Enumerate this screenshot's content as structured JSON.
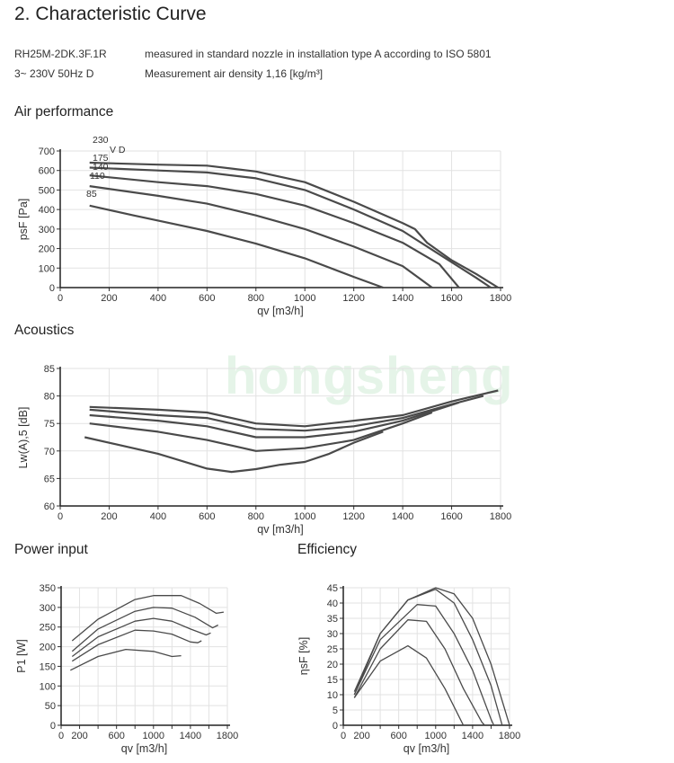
{
  "header": {
    "title": "2.  Characteristic Curve",
    "model": "RH25M-2DK.3F.1R",
    "supply": "3~ 230V 50Hz D",
    "measurement_note": "measured in standard nozzle in installation type A according to ISO 5801",
    "air_density": "Measurement air density 1,16 [kg/m³]"
  },
  "watermark": "hongsheng",
  "sections": {
    "air": "Air performance",
    "acoustics": "Acoustics",
    "power": "Power input",
    "efficiency": "Efficiency"
  },
  "chart_data": [
    {
      "id": "air",
      "type": "line",
      "title": "Air performance",
      "xlabel": "qv [m3/h]",
      "ylabel": "psF [Pa]",
      "xlim": [
        0,
        1800
      ],
      "ylim": [
        0,
        700
      ],
      "xticks": [
        0,
        200,
        400,
        600,
        800,
        1000,
        1200,
        1400,
        1600,
        1800
      ],
      "xticklabels": [
        "0",
        "200",
        "400",
        "600",
        "800",
        "1000",
        "1200",
        "1400",
        "1600",
        "1800"
      ],
      "yticks": [
        0,
        100,
        200,
        300,
        400,
        500,
        600,
        700
      ],
      "grid": true,
      "curve_labels": [
        "230",
        "V D",
        "175",
        "140",
        "110",
        "85"
      ],
      "series": [
        {
          "name": "230",
          "points": [
            [
              120,
              640
            ],
            [
              400,
              630
            ],
            [
              600,
              625
            ],
            [
              800,
              595
            ],
            [
              1000,
              540
            ],
            [
              1200,
              440
            ],
            [
              1400,
              330
            ],
            [
              1450,
              300
            ],
            [
              1500,
              230
            ],
            [
              1600,
              140
            ],
            [
              1700,
              70
            ],
            [
              1790,
              0
            ]
          ]
        },
        {
          "name": "175",
          "points": [
            [
              120,
              615
            ],
            [
              400,
              600
            ],
            [
              600,
              590
            ],
            [
              800,
              560
            ],
            [
              1000,
              500
            ],
            [
              1200,
              400
            ],
            [
              1400,
              290
            ],
            [
              1550,
              170
            ],
            [
              1700,
              50
            ],
            [
              1760,
              0
            ]
          ]
        },
        {
          "name": "140",
          "points": [
            [
              120,
              575
            ],
            [
              400,
              540
            ],
            [
              600,
              520
            ],
            [
              800,
              480
            ],
            [
              1000,
              420
            ],
            [
              1200,
              330
            ],
            [
              1400,
              230
            ],
            [
              1550,
              120
            ],
            [
              1630,
              0
            ]
          ]
        },
        {
          "name": "110",
          "points": [
            [
              120,
              520
            ],
            [
              400,
              470
            ],
            [
              600,
              430
            ],
            [
              800,
              370
            ],
            [
              1000,
              300
            ],
            [
              1200,
              210
            ],
            [
              1400,
              110
            ],
            [
              1520,
              0
            ]
          ]
        },
        {
          "name": "85",
          "points": [
            [
              120,
              420
            ],
            [
              300,
              370
            ],
            [
              600,
              290
            ],
            [
              800,
              225
            ],
            [
              1000,
              150
            ],
            [
              1200,
              55
            ],
            [
              1320,
              0
            ]
          ]
        }
      ]
    },
    {
      "id": "acoustics",
      "type": "line",
      "title": "Acoustics",
      "xlabel": "qv [m3/h]",
      "ylabel": "Lw(A),5 [dB]",
      "xlim": [
        0,
        1800
      ],
      "ylim": [
        60,
        85
      ],
      "xticks": [
        0,
        200,
        400,
        600,
        800,
        1000,
        1200,
        1400,
        1600,
        1800
      ],
      "xticklabels": [
        "0",
        "200",
        "400",
        "600",
        "800",
        "1000",
        "1200",
        "1400",
        "1600",
        "1800"
      ],
      "yticks": [
        60,
        65,
        70,
        75,
        80,
        85
      ],
      "grid": true,
      "series": [
        {
          "name": "230",
          "points": [
            [
              120,
              78
            ],
            [
              400,
              77.5
            ],
            [
              600,
              77
            ],
            [
              800,
              75
            ],
            [
              1000,
              74.5
            ],
            [
              1200,
              75.5
            ],
            [
              1400,
              76.5
            ],
            [
              1600,
              79
            ],
            [
              1790,
              81
            ]
          ]
        },
        {
          "name": "175",
          "points": [
            [
              120,
              77.5
            ],
            [
              400,
              76.5
            ],
            [
              600,
              76
            ],
            [
              800,
              74
            ],
            [
              1000,
              73.7
            ],
            [
              1200,
              74.5
            ],
            [
              1400,
              76
            ],
            [
              1600,
              78.5
            ],
            [
              1730,
              80
            ]
          ]
        },
        {
          "name": "140",
          "points": [
            [
              120,
              76.5
            ],
            [
              400,
              75.5
            ],
            [
              600,
              74.5
            ],
            [
              800,
              72.5
            ],
            [
              1000,
              72.5
            ],
            [
              1200,
              73.5
            ],
            [
              1400,
              75.5
            ],
            [
              1630,
              78.8
            ]
          ]
        },
        {
          "name": "110",
          "points": [
            [
              120,
              75
            ],
            [
              400,
              73.5
            ],
            [
              600,
              72
            ],
            [
              800,
              70
            ],
            [
              1000,
              70.5
            ],
            [
              1200,
              72
            ],
            [
              1400,
              75
            ],
            [
              1520,
              77
            ]
          ]
        },
        {
          "name": "85",
          "points": [
            [
              100,
              72.5
            ],
            [
              400,
              69.5
            ],
            [
              600,
              66.8
            ],
            [
              700,
              66.2
            ],
            [
              800,
              66.7
            ],
            [
              900,
              67.5
            ],
            [
              1000,
              68
            ],
            [
              1100,
              69.5
            ],
            [
              1200,
              71.5
            ],
            [
              1320,
              73.5
            ]
          ]
        }
      ]
    },
    {
      "id": "power",
      "type": "line",
      "title": "Power input",
      "xlabel": "qv [m3/h]",
      "ylabel": "P1 [W]",
      "xlim": [
        0,
        1800
      ],
      "ylim": [
        0,
        350
      ],
      "xticks": [
        0,
        200,
        400,
        600,
        800,
        1000,
        1200,
        1400,
        1600,
        1800
      ],
      "xticklabels": [
        "0",
        "200",
        "",
        "600",
        "",
        "1000",
        "",
        "1400",
        "",
        "1800"
      ],
      "yticks": [
        0,
        50,
        100,
        150,
        200,
        250,
        300,
        350
      ],
      "grid": true,
      "series": [
        {
          "name": "230",
          "points": [
            [
              120,
              215
            ],
            [
              400,
              270
            ],
            [
              800,
              320
            ],
            [
              1000,
              330
            ],
            [
              1300,
              330
            ],
            [
              1500,
              310
            ],
            [
              1680,
              285
            ],
            [
              1760,
              288
            ]
          ]
        },
        {
          "name": "175",
          "points": [
            [
              120,
              188
            ],
            [
              400,
              245
            ],
            [
              800,
              290
            ],
            [
              1000,
              300
            ],
            [
              1200,
              298
            ],
            [
              1450,
              275
            ],
            [
              1640,
              248
            ],
            [
              1700,
              255
            ]
          ]
        },
        {
          "name": "140",
          "points": [
            [
              120,
              175
            ],
            [
              400,
              225
            ],
            [
              800,
              265
            ],
            [
              1000,
              272
            ],
            [
              1200,
              265
            ],
            [
              1400,
              245
            ],
            [
              1570,
              230
            ],
            [
              1620,
              235
            ]
          ]
        },
        {
          "name": "110",
          "points": [
            [
              120,
              163
            ],
            [
              400,
              205
            ],
            [
              800,
              242
            ],
            [
              1000,
              240
            ],
            [
              1200,
              232
            ],
            [
              1400,
              212
            ],
            [
              1480,
              210
            ],
            [
              1520,
              215
            ]
          ]
        },
        {
          "name": "85",
          "points": [
            [
              100,
              140
            ],
            [
              400,
              175
            ],
            [
              700,
              193
            ],
            [
              1000,
              188
            ],
            [
              1200,
              175
            ],
            [
              1300,
              177
            ]
          ]
        }
      ]
    },
    {
      "id": "efficiency",
      "type": "line",
      "title": "Efficiency",
      "xlabel": "qv [m3/h]",
      "ylabel": "ηsF [%]",
      "xlim": [
        0,
        1800
      ],
      "ylim": [
        0,
        45
      ],
      "xticks": [
        0,
        200,
        400,
        600,
        800,
        1000,
        1200,
        1400,
        1600,
        1800
      ],
      "xticklabels": [
        "0",
        "200",
        "",
        "600",
        "",
        "1000",
        "",
        "1400",
        "",
        "1800"
      ],
      "yticks": [
        0,
        5,
        10,
        15,
        20,
        25,
        30,
        35,
        40,
        45
      ],
      "grid": true,
      "series": [
        {
          "name": "230",
          "points": [
            [
              120,
              10
            ],
            [
              400,
              30
            ],
            [
              700,
              41
            ],
            [
              1000,
              45
            ],
            [
              1200,
              43
            ],
            [
              1400,
              35
            ],
            [
              1600,
              20
            ],
            [
              1750,
              5
            ],
            [
              1800,
              0
            ]
          ]
        },
        {
          "name": "175",
          "points": [
            [
              120,
              11
            ],
            [
              400,
              30
            ],
            [
              700,
              41
            ],
            [
              1000,
              44.5
            ],
            [
              1200,
              40
            ],
            [
              1400,
              28
            ],
            [
              1600,
              13
            ],
            [
              1720,
              0
            ]
          ]
        },
        {
          "name": "140",
          "points": [
            [
              120,
              10
            ],
            [
              400,
              28
            ],
            [
              800,
              39.5
            ],
            [
              1000,
              39
            ],
            [
              1200,
              30
            ],
            [
              1400,
              18
            ],
            [
              1600,
              2
            ],
            [
              1630,
              0
            ]
          ]
        },
        {
          "name": "110",
          "points": [
            [
              120,
              9
            ],
            [
              400,
              25
            ],
            [
              700,
              34.5
            ],
            [
              900,
              34
            ],
            [
              1100,
              25
            ],
            [
              1300,
              12
            ],
            [
              1500,
              1
            ],
            [
              1530,
              0
            ]
          ]
        },
        {
          "name": "85",
          "points": [
            [
              120,
              9
            ],
            [
              400,
              21
            ],
            [
              700,
              26
            ],
            [
              900,
              22
            ],
            [
              1100,
              12
            ],
            [
              1300,
              0
            ]
          ]
        }
      ]
    }
  ]
}
